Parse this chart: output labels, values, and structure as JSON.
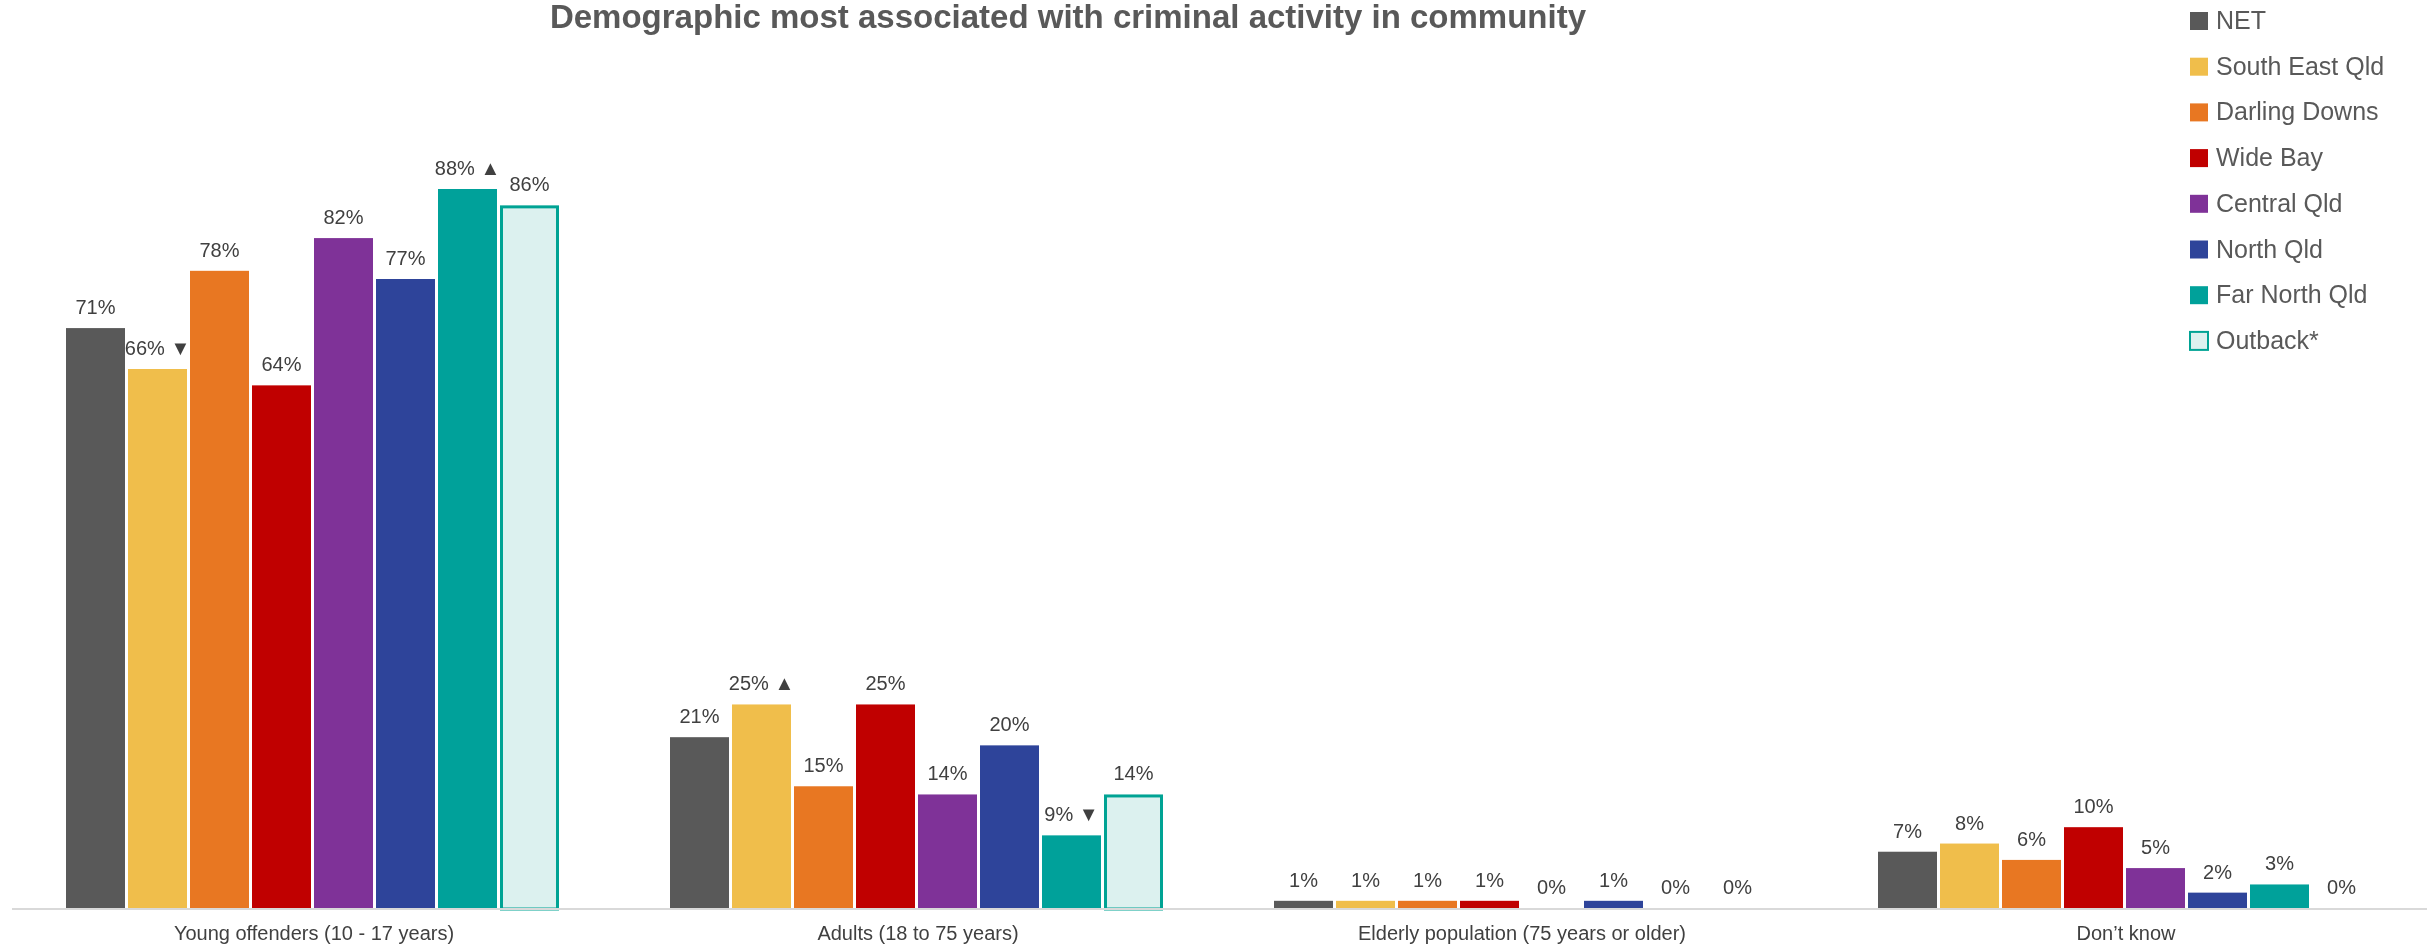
{
  "chart_data": {
    "type": "bar",
    "title": "Demographic most associated with criminal activity in community",
    "categories": [
      "Young offenders (10 - 17 years)",
      "Adults (18 to 75 years)",
      "Elderly population (75 years or older)",
      "Don’t know"
    ],
    "legend": "top right",
    "grid": false,
    "series": [
      {
        "name": "NET",
        "color": "#595959",
        "values": [
          71,
          21,
          1,
          7
        ],
        "value_labels": [
          "71%",
          "21%",
          "1%",
          "7%"
        ]
      },
      {
        "name": "South East Qld",
        "color": "#f0be4b",
        "values": [
          66,
          25,
          1,
          8
        ],
        "value_labels": [
          "66% ▼",
          "25% ▲",
          "1%",
          "8%"
        ]
      },
      {
        "name": "Darling Downs",
        "color": "#e87722",
        "values": [
          78,
          15,
          1,
          6
        ],
        "value_labels": [
          "78%",
          "15%",
          "1%",
          "6%"
        ]
      },
      {
        "name": "Wide Bay",
        "color": "#c00000",
        "values": [
          64,
          25,
          1,
          10
        ],
        "value_labels": [
          "64%",
          "25%",
          "1%",
          "10%"
        ]
      },
      {
        "name": "Central Qld",
        "color": "#7f3298",
        "values": [
          82,
          14,
          0,
          5
        ],
        "value_labels": [
          "82%",
          "14%",
          "0%",
          "5%"
        ]
      },
      {
        "name": "North Qld",
        "color": "#2e449a",
        "values": [
          77,
          20,
          1,
          2
        ],
        "value_labels": [
          "77%",
          "20%",
          "1%",
          "2%"
        ]
      },
      {
        "name": "Far North Qld",
        "color": "#00a19a",
        "values": [
          88,
          9,
          0,
          3
        ],
        "value_labels": [
          "88% ▲",
          "9% ▼",
          "0%",
          "3%"
        ]
      },
      {
        "name": "Outback*",
        "color": "#dcf1ef",
        "values": [
          86,
          14,
          0,
          0
        ],
        "value_labels": [
          "86%",
          "14%",
          "0%",
          "0%"
        ]
      }
    ]
  }
}
